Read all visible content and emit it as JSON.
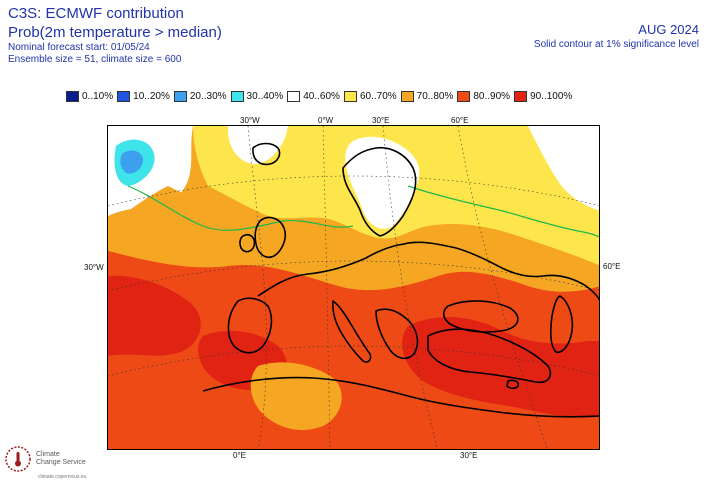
{
  "header": {
    "title": "C3S: ECMWF contribution",
    "variable": "Prob(2m temperature > median)",
    "forecast_start": "Nominal forecast start: 01/05/24",
    "ensemble": "Ensemble size = 51, climate size = 600",
    "month": "AUG 2024",
    "significance": "Solid contour at 1% significance level"
  },
  "legend": [
    {
      "label": "0..10%",
      "color": "#0a1d8f"
    },
    {
      "label": "10..20%",
      "color": "#1f55e0"
    },
    {
      "label": "20..30%",
      "color": "#3ca0ee"
    },
    {
      "label": "30..40%",
      "color": "#3fe3ea"
    },
    {
      "label": "40..60%",
      "color": "#ffffff"
    },
    {
      "label": "60..70%",
      "color": "#fde64b"
    },
    {
      "label": "70..80%",
      "color": "#f5a623"
    },
    {
      "label": "80..90%",
      "color": "#ee4a16"
    },
    {
      "label": "90..100%",
      "color": "#e12313"
    }
  ],
  "coordinates": {
    "top": [
      "30°W",
      "0°W",
      "30°E",
      "60°E"
    ],
    "left": "30°W",
    "right": "60°E",
    "bottom": [
      "0°E",
      "30°E"
    ]
  },
  "logo": {
    "line1": "Climate",
    "line2": "Change Service",
    "url": "climate.copernicus.eu"
  }
}
